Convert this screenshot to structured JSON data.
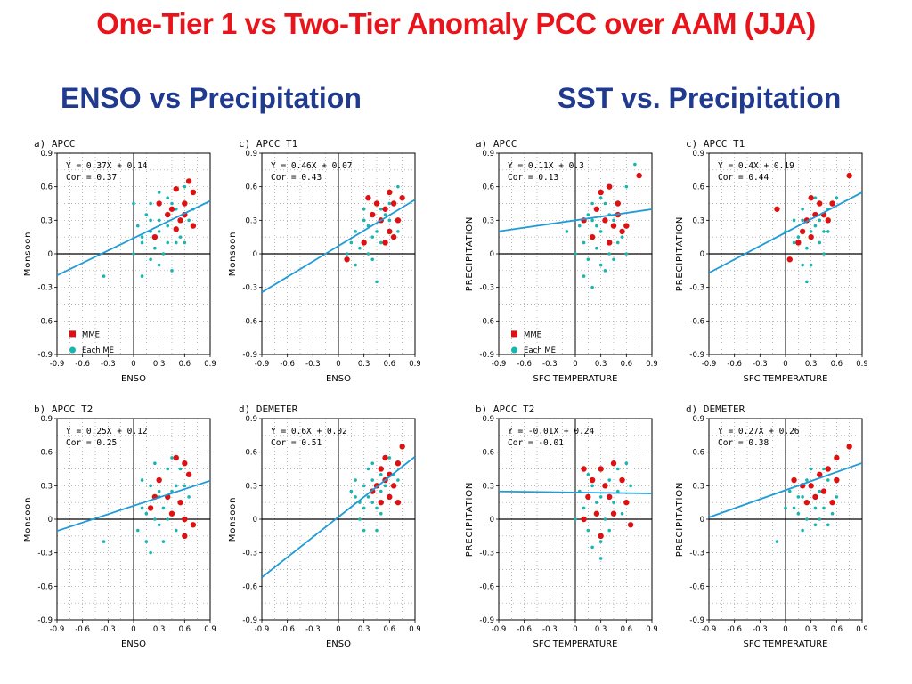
{
  "title": "One-Tier 1 vs Two-Tier Anomaly PCC over AAM (JJA)",
  "sections": {
    "left": "ENSO vs Precipitation",
    "right": "SST vs. Precipitation"
  },
  "colors": {
    "title": "#e8141c",
    "section": "#1f3a8f",
    "mme": "#dd1111",
    "each_me": "#19b5b0",
    "fit_line": "#1f9bd8"
  },
  "legend": {
    "mme": "MME",
    "each_me": "Each ME"
  },
  "chart_data": [
    {
      "type": "scatter",
      "id": "enso-a",
      "panel_title": "a) APCC",
      "xlabel": "ENSO",
      "ylabel": "Monsoon",
      "equation": "Y = 0.37X + 0.14",
      "cor": "Cor = 0.37",
      "slope": 0.37,
      "intercept": 0.14,
      "xlim": [
        -0.9,
        0.9
      ],
      "ylim": [
        -0.9,
        0.9
      ],
      "show_legend": true,
      "grid": true,
      "mme_points": [
        [
          0.5,
          0.58
        ],
        [
          0.65,
          0.65
        ],
        [
          0.7,
          0.55
        ],
        [
          0.3,
          0.45
        ],
        [
          0.45,
          0.4
        ],
        [
          0.55,
          0.3
        ],
        [
          0.5,
          0.22
        ],
        [
          0.6,
          0.35
        ],
        [
          0.7,
          0.25
        ],
        [
          0.25,
          0.15
        ],
        [
          0.4,
          0.35
        ],
        [
          0.6,
          0.45
        ]
      ],
      "each_me_points": [
        [
          0.1,
          0.1
        ],
        [
          0.2,
          0.3
        ],
        [
          0.3,
          0.2
        ],
        [
          0.4,
          0.5
        ],
        [
          0.5,
          0.1
        ],
        [
          0.0,
          0.0
        ],
        [
          0.1,
          -0.2
        ],
        [
          0.3,
          -0.1
        ],
        [
          0.2,
          0.45
        ],
        [
          0.6,
          0.6
        ],
        [
          0.7,
          0.4
        ],
        [
          0.4,
          0.25
        ],
        [
          0.15,
          0.35
        ],
        [
          0.25,
          0.05
        ],
        [
          0.35,
          0.0
        ],
        [
          0.45,
          -0.15
        ],
        [
          0.55,
          0.15
        ],
        [
          0.05,
          0.25
        ],
        [
          0.3,
          0.55
        ],
        [
          0.5,
          0.4
        ],
        [
          0.65,
          0.3
        ],
        [
          0.2,
          -0.05
        ],
        [
          0.1,
          0.15
        ],
        [
          0.4,
          0.1
        ],
        [
          -0.35,
          -0.2
        ],
        [
          0.3,
          0.3
        ],
        [
          0.2,
          0.2
        ],
        [
          0.45,
          0.45
        ],
        [
          0.0,
          0.45
        ],
        [
          0.6,
          0.1
        ]
      ]
    },
    {
      "type": "scatter",
      "id": "enso-c",
      "panel_title": "c) APCC T1",
      "xlabel": "ENSO",
      "ylabel": "Monsoon",
      "equation": "Y = 0.46X + 0.07",
      "cor": "Cor = 0.43",
      "slope": 0.46,
      "intercept": 0.07,
      "xlim": [
        -0.9,
        0.9
      ],
      "ylim": [
        -0.9,
        0.9
      ],
      "show_legend": false,
      "grid": true,
      "mme_points": [
        [
          0.35,
          0.5
        ],
        [
          0.45,
          0.45
        ],
        [
          0.55,
          0.4
        ],
        [
          0.65,
          0.45
        ],
        [
          0.75,
          0.5
        ],
        [
          0.4,
          0.35
        ],
        [
          0.5,
          0.3
        ],
        [
          0.6,
          0.2
        ],
        [
          0.7,
          0.3
        ],
        [
          0.55,
          0.1
        ],
        [
          0.65,
          0.15
        ],
        [
          0.1,
          -0.05
        ],
        [
          0.3,
          0.1
        ],
        [
          0.6,
          0.55
        ]
      ],
      "each_me_points": [
        [
          0.2,
          0.2
        ],
        [
          0.3,
          0.3
        ],
        [
          0.4,
          0.15
        ],
        [
          0.5,
          0.4
        ],
        [
          0.6,
          0.3
        ],
        [
          0.7,
          0.6
        ],
        [
          0.25,
          0.05
        ],
        [
          0.35,
          0.25
        ],
        [
          0.45,
          0.2
        ],
        [
          0.55,
          0.35
        ],
        [
          0.15,
          0.1
        ],
        [
          0.3,
          0.4
        ],
        [
          0.5,
          0.1
        ],
        [
          0.4,
          -0.05
        ],
        [
          0.2,
          -0.1
        ],
        [
          0.6,
          0.45
        ],
        [
          0.7,
          0.2
        ],
        [
          0.45,
          -0.25
        ],
        [
          0.35,
          0.0
        ],
        [
          0.1,
          0.0
        ]
      ]
    },
    {
      "type": "scatter",
      "id": "enso-b",
      "panel_title": "b) APCC T2",
      "xlabel": "ENSO",
      "ylabel": "Monsoon",
      "equation": "Y = 0.25X + 0.12",
      "cor": "Cor = 0.25",
      "slope": 0.25,
      "intercept": 0.12,
      "xlim": [
        -0.9,
        0.9
      ],
      "ylim": [
        -0.9,
        0.9
      ],
      "show_legend": false,
      "grid": true,
      "mme_points": [
        [
          0.5,
          0.55
        ],
        [
          0.6,
          0.5
        ],
        [
          0.65,
          0.4
        ],
        [
          0.3,
          0.35
        ],
        [
          0.4,
          0.2
        ],
        [
          0.25,
          0.2
        ],
        [
          0.55,
          0.15
        ],
        [
          0.2,
          0.1
        ],
        [
          0.6,
          0.0
        ],
        [
          0.7,
          -0.05
        ],
        [
          0.6,
          -0.15
        ],
        [
          0.45,
          0.05
        ]
      ],
      "each_me_points": [
        [
          0.1,
          0.1
        ],
        [
          0.2,
          0.3
        ],
        [
          0.3,
          0.2
        ],
        [
          0.4,
          0.45
        ],
        [
          0.5,
          0.3
        ],
        [
          0.05,
          -0.1
        ],
        [
          0.15,
          -0.2
        ],
        [
          0.3,
          -0.05
        ],
        [
          0.25,
          0.5
        ],
        [
          0.6,
          0.3
        ],
        [
          0.35,
          0.1
        ],
        [
          0.45,
          0.25
        ],
        [
          0.15,
          0.05
        ],
        [
          0.5,
          -0.1
        ],
        [
          0.2,
          -0.3
        ],
        [
          0.35,
          -0.2
        ],
        [
          0.4,
          0.0
        ],
        [
          0.55,
          0.45
        ],
        [
          0.1,
          0.35
        ],
        [
          0.3,
          0.25
        ],
        [
          -0.35,
          -0.2
        ],
        [
          0.25,
          0.0
        ],
        [
          0.45,
          0.55
        ],
        [
          0.65,
          0.2
        ]
      ]
    },
    {
      "type": "scatter",
      "id": "enso-d",
      "panel_title": "d) DEMETER",
      "xlabel": "ENSO",
      "ylabel": "Monsoon",
      "equation": "Y = 0.6X + 0.02",
      "cor": "Cor = 0.51",
      "slope": 0.6,
      "intercept": 0.02,
      "xlim": [
        -0.9,
        0.9
      ],
      "ylim": [
        -0.9,
        0.9
      ],
      "show_legend": false,
      "grid": true,
      "mme_points": [
        [
          0.5,
          0.45
        ],
        [
          0.6,
          0.4
        ],
        [
          0.7,
          0.5
        ],
        [
          0.75,
          0.65
        ],
        [
          0.55,
          0.35
        ],
        [
          0.45,
          0.3
        ],
        [
          0.65,
          0.3
        ],
        [
          0.6,
          0.2
        ],
        [
          0.7,
          0.15
        ],
        [
          0.5,
          0.15
        ],
        [
          0.4,
          0.25
        ],
        [
          0.55,
          0.55
        ]
      ],
      "each_me_points": [
        [
          0.2,
          0.2
        ],
        [
          0.3,
          0.3
        ],
        [
          0.4,
          0.35
        ],
        [
          0.5,
          0.25
        ],
        [
          0.3,
          0.1
        ],
        [
          0.25,
          0.0
        ],
        [
          0.35,
          0.2
        ],
        [
          0.45,
          0.1
        ],
        [
          0.6,
          0.55
        ],
        [
          0.7,
          0.35
        ],
        [
          0.2,
          0.35
        ],
        [
          0.4,
          0.5
        ],
        [
          0.5,
          0.05
        ],
        [
          0.3,
          -0.1
        ],
        [
          0.45,
          -0.1
        ],
        [
          0.55,
          0.3
        ],
        [
          0.15,
          0.25
        ],
        [
          0.65,
          0.4
        ],
        [
          0.35,
          0.45
        ],
        [
          0.25,
          0.15
        ],
        [
          0.4,
          0.15
        ],
        [
          0.5,
          0.4
        ]
      ]
    },
    {
      "type": "scatter",
      "id": "sst-a",
      "panel_title": "a) APCC",
      "xlabel": "SFC TEMPERATURE",
      "ylabel": "PRECIPITATION",
      "equation": "Y = 0.11X + 0.3",
      "cor": "Cor = 0.13",
      "slope": 0.11,
      "intercept": 0.3,
      "xlim": [
        -0.9,
        0.9
      ],
      "ylim": [
        -0.9,
        0.9
      ],
      "show_legend": true,
      "grid": true,
      "mme_points": [
        [
          0.4,
          0.6
        ],
        [
          0.3,
          0.55
        ],
        [
          0.5,
          0.45
        ],
        [
          0.25,
          0.4
        ],
        [
          0.35,
          0.3
        ],
        [
          0.45,
          0.25
        ],
        [
          0.55,
          0.2
        ],
        [
          0.2,
          0.15
        ],
        [
          0.4,
          0.1
        ],
        [
          0.6,
          0.25
        ],
        [
          0.75,
          0.7
        ],
        [
          0.1,
          0.3
        ],
        [
          0.5,
          0.35
        ]
      ],
      "each_me_points": [
        [
          0.1,
          0.1
        ],
        [
          0.2,
          0.3
        ],
        [
          0.3,
          0.2
        ],
        [
          0.0,
          0.0
        ],
        [
          0.1,
          -0.2
        ],
        [
          0.3,
          -0.1
        ],
        [
          0.5,
          0.1
        ],
        [
          0.2,
          0.45
        ],
        [
          0.6,
          0.6
        ],
        [
          0.4,
          0.35
        ],
        [
          0.15,
          0.35
        ],
        [
          0.25,
          0.05
        ],
        [
          0.35,
          -0.15
        ],
        [
          0.45,
          -0.05
        ],
        [
          0.05,
          0.25
        ],
        [
          0.2,
          -0.3
        ],
        [
          0.4,
          0.0
        ],
        [
          0.3,
          0.5
        ],
        [
          0.55,
          0.15
        ],
        [
          -0.1,
          0.2
        ],
        [
          0.25,
          0.25
        ],
        [
          0.6,
          0.0
        ],
        [
          0.7,
          0.8
        ],
        [
          0.15,
          -0.05
        ],
        [
          0.35,
          0.45
        ],
        [
          0.45,
          0.3
        ]
      ]
    },
    {
      "type": "scatter",
      "id": "sst-c",
      "panel_title": "c) APCC T1",
      "xlabel": "SFC TEMPERATURE",
      "ylabel": "PRECIPITATION",
      "equation": "Y = 0.4X + 0.19",
      "cor": "Cor = 0.44",
      "slope": 0.4,
      "intercept": 0.19,
      "xlim": [
        -0.9,
        0.9
      ],
      "ylim": [
        -0.9,
        0.9
      ],
      "show_legend": false,
      "grid": true,
      "mme_points": [
        [
          0.3,
          0.5
        ],
        [
          0.4,
          0.45
        ],
        [
          0.55,
          0.45
        ],
        [
          0.35,
          0.35
        ],
        [
          0.5,
          0.3
        ],
        [
          0.25,
          0.3
        ],
        [
          0.2,
          0.2
        ],
        [
          0.3,
          0.15
        ],
        [
          0.15,
          0.1
        ],
        [
          0.05,
          -0.05
        ],
        [
          0.75,
          0.7
        ],
        [
          -0.1,
          0.4
        ],
        [
          0.45,
          0.35
        ]
      ],
      "each_me_points": [
        [
          0.1,
          0.1
        ],
        [
          0.2,
          0.3
        ],
        [
          0.3,
          0.2
        ],
        [
          0.4,
          0.3
        ],
        [
          0.5,
          0.4
        ],
        [
          0.15,
          0.15
        ],
        [
          0.25,
          0.05
        ],
        [
          0.35,
          0.25
        ],
        [
          0.45,
          0.2
        ],
        [
          0.3,
          -0.1
        ],
        [
          0.2,
          -0.1
        ],
        [
          0.1,
          0.3
        ],
        [
          0.4,
          0.1
        ],
        [
          0.0,
          0.2
        ],
        [
          0.5,
          0.2
        ],
        [
          0.25,
          -0.25
        ],
        [
          0.35,
          0.5
        ],
        [
          0.6,
          0.5
        ],
        [
          0.2,
          0.4
        ],
        [
          0.45,
          0.0
        ]
      ]
    },
    {
      "type": "scatter",
      "id": "sst-b",
      "panel_title": "b) APCC T2",
      "xlabel": "SFC TEMPERATURE",
      "ylabel": "PRECIPITATION",
      "equation": "Y = -0.01X + 0.24",
      "cor": "Cor = -0.01",
      "slope": -0.01,
      "intercept": 0.24,
      "xlim": [
        -0.9,
        0.9
      ],
      "ylim": [
        -0.9,
        0.9
      ],
      "show_legend": false,
      "grid": true,
      "mme_points": [
        [
          0.1,
          0.45
        ],
        [
          0.3,
          0.45
        ],
        [
          0.45,
          0.5
        ],
        [
          0.2,
          0.35
        ],
        [
          0.35,
          0.3
        ],
        [
          0.55,
          0.35
        ],
        [
          0.15,
          0.2
        ],
        [
          0.4,
          0.2
        ],
        [
          0.6,
          0.15
        ],
        [
          0.25,
          0.05
        ],
        [
          0.45,
          0.05
        ],
        [
          0.65,
          -0.05
        ],
        [
          0.3,
          -0.15
        ],
        [
          0.1,
          0.0
        ]
      ],
      "each_me_points": [
        [
          0.1,
          0.1
        ],
        [
          0.2,
          0.3
        ],
        [
          0.3,
          0.2
        ],
        [
          0.4,
          0.35
        ],
        [
          0.5,
          0.25
        ],
        [
          0.0,
          0.0
        ],
        [
          0.15,
          -0.1
        ],
        [
          0.3,
          -0.2
        ],
        [
          0.35,
          0.0
        ],
        [
          0.45,
          0.15
        ],
        [
          0.6,
          0.5
        ],
        [
          0.25,
          0.15
        ],
        [
          0.05,
          0.25
        ],
        [
          0.55,
          0.05
        ],
        [
          0.2,
          -0.25
        ],
        [
          0.4,
          -0.1
        ],
        [
          0.3,
          -0.35
        ],
        [
          0.5,
          0.45
        ],
        [
          0.65,
          0.3
        ],
        [
          0.15,
          0.4
        ]
      ]
    },
    {
      "type": "scatter",
      "id": "sst-d",
      "panel_title": "d) DEMETER",
      "xlabel": "SFC TEMPERATURE",
      "ylabel": "PRECIPITATION",
      "equation": "Y = 0.27X + 0.26",
      "cor": "Cor = 0.38",
      "slope": 0.27,
      "intercept": 0.26,
      "xlim": [
        -0.9,
        0.9
      ],
      "ylim": [
        -0.9,
        0.9
      ],
      "show_legend": false,
      "grid": true,
      "mme_points": [
        [
          0.3,
          0.3
        ],
        [
          0.4,
          0.4
        ],
        [
          0.5,
          0.45
        ],
        [
          0.2,
          0.3
        ],
        [
          0.35,
          0.2
        ],
        [
          0.45,
          0.25
        ],
        [
          0.6,
          0.35
        ],
        [
          0.25,
          0.15
        ],
        [
          0.55,
          0.15
        ],
        [
          0.75,
          0.65
        ],
        [
          0.6,
          0.55
        ],
        [
          0.1,
          0.35
        ]
      ],
      "each_me_points": [
        [
          0.1,
          0.1
        ],
        [
          0.2,
          0.2
        ],
        [
          0.3,
          0.3
        ],
        [
          0.4,
          0.25
        ],
        [
          0.5,
          0.35
        ],
        [
          0.15,
          0.05
        ],
        [
          0.25,
          0.0
        ],
        [
          0.35,
          -0.05
        ],
        [
          0.45,
          0.1
        ],
        [
          0.55,
          0.05
        ],
        [
          0.05,
          0.25
        ],
        [
          0.3,
          0.45
        ],
        [
          0.4,
          0.0
        ],
        [
          0.2,
          -0.1
        ],
        [
          0.5,
          -0.05
        ],
        [
          0.6,
          0.2
        ],
        [
          0.0,
          0.1
        ],
        [
          -0.1,
          -0.2
        ],
        [
          0.35,
          0.1
        ],
        [
          0.25,
          0.35
        ],
        [
          0.45,
          0.45
        ],
        [
          0.15,
          0.2
        ]
      ]
    }
  ]
}
